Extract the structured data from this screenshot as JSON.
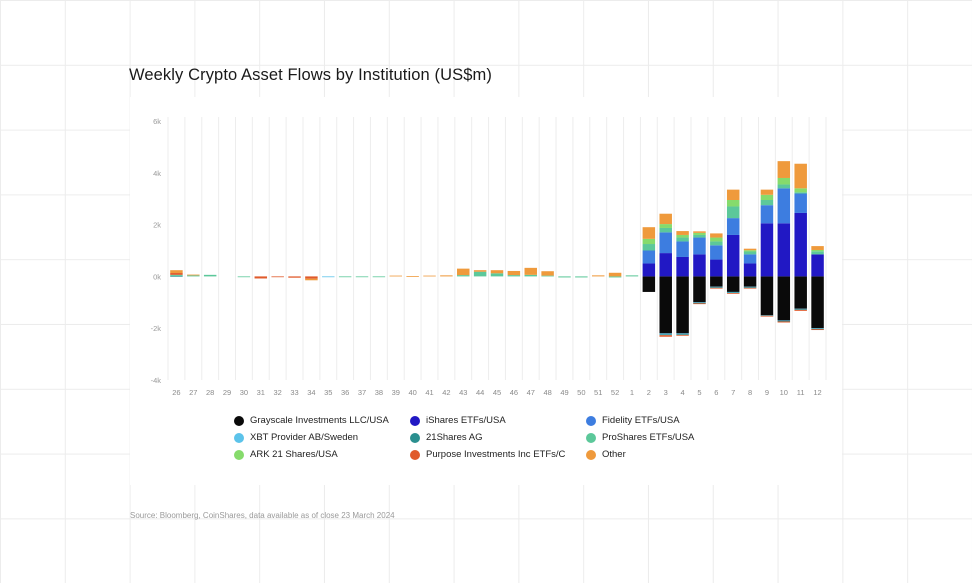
{
  "title": "Weekly Crypto Asset Flows by Institution (US$m)",
  "source": "Source: Bloomberg, CoinShares, data available as of close 23 March 2024",
  "chart_data": {
    "type": "bar",
    "stacked": true,
    "categories": [
      "26",
      "27",
      "28",
      "29",
      "30",
      "31",
      "32",
      "33",
      "34",
      "35",
      "36",
      "37",
      "38",
      "39",
      "40",
      "41",
      "42",
      "43",
      "44",
      "45",
      "46",
      "47",
      "48",
      "49",
      "50",
      "51",
      "52",
      "1",
      "2",
      "3",
      "4",
      "5",
      "6",
      "7",
      "8",
      "9",
      "10",
      "11",
      "12"
    ],
    "ylim": [
      -4000,
      6000
    ],
    "yticks": [
      6000,
      4000,
      2000,
      0,
      -2000,
      -4000
    ],
    "ytick_labels": [
      "6k",
      "4k",
      "2k",
      "0k",
      "-2k",
      "-4k"
    ],
    "grid": "vertical",
    "legend_position": "bottom",
    "series": [
      {
        "name": "Grayscale Investments LLC/USA",
        "color": "#0a0a0a",
        "values": [
          0,
          0,
          0,
          0,
          0,
          0,
          0,
          0,
          0,
          0,
          0,
          0,
          0,
          0,
          0,
          0,
          0,
          0,
          0,
          0,
          0,
          0,
          0,
          0,
          0,
          0,
          0,
          0,
          -600,
          -2200,
          -2200,
          -1000,
          -400,
          -600,
          -400,
          -1500,
          -1700,
          -1250,
          -2000
        ]
      },
      {
        "name": "iShares ETFs/USA",
        "color": "#2118c4",
        "values": [
          0,
          0,
          0,
          0,
          0,
          0,
          0,
          0,
          0,
          0,
          0,
          0,
          0,
          0,
          0,
          0,
          0,
          0,
          0,
          0,
          0,
          0,
          0,
          0,
          0,
          0,
          0,
          0,
          500,
          900,
          750,
          850,
          650,
          1600,
          500,
          2050,
          2050,
          2450,
          850
        ]
      },
      {
        "name": "Fidelity ETFs/USA",
        "color": "#3d7de0",
        "values": [
          0,
          0,
          0,
          0,
          0,
          0,
          0,
          0,
          0,
          0,
          0,
          0,
          0,
          0,
          0,
          0,
          0,
          0,
          0,
          0,
          0,
          0,
          0,
          0,
          0,
          0,
          0,
          0,
          500,
          800,
          600,
          650,
          550,
          650,
          350,
          700,
          1350,
          750,
          0
        ]
      },
      {
        "name": "XBT Provider AB/Sweden",
        "color": "#5cc3ea",
        "values": [
          0,
          0,
          0,
          0,
          0,
          0,
          0,
          0,
          0,
          -10,
          0,
          0,
          0,
          0,
          0,
          0,
          0,
          0,
          0,
          0,
          0,
          0,
          0,
          0,
          0,
          0,
          0,
          0,
          0,
          -40,
          -30,
          -20,
          -20,
          -20,
          -20,
          -10,
          -20,
          -20,
          -20
        ]
      },
      {
        "name": "21Shares AG",
        "color": "#2a8f8f",
        "values": [
          20,
          0,
          0,
          0,
          0,
          0,
          0,
          0,
          0,
          0,
          0,
          0,
          0,
          0,
          0,
          0,
          0,
          0,
          0,
          0,
          0,
          0,
          0,
          0,
          0,
          0,
          0,
          0,
          0,
          -30,
          -30,
          -20,
          -20,
          -20,
          -20,
          -10,
          -20,
          -20,
          -20
        ]
      },
      {
        "name": "ProShares ETFs/USA",
        "color": "#5cc89a",
        "values": [
          40,
          40,
          60,
          0,
          -15,
          0,
          0,
          0,
          0,
          0,
          -30,
          -30,
          -20,
          0,
          0,
          0,
          0,
          50,
          180,
          120,
          50,
          60,
          30,
          -40,
          -40,
          0,
          -40,
          40,
          250,
          170,
          150,
          100,
          150,
          450,
          110,
          200,
          150,
          50,
          120
        ]
      },
      {
        "name": "ARK 21 Shares/USA",
        "color": "#86db6c",
        "values": [
          0,
          0,
          0,
          0,
          0,
          0,
          0,
          0,
          0,
          0,
          0,
          0,
          0,
          0,
          0,
          0,
          0,
          0,
          0,
          0,
          0,
          0,
          0,
          0,
          0,
          0,
          0,
          0,
          200,
          150,
          100,
          80,
          150,
          250,
          50,
          200,
          250,
          150,
          50
        ]
      },
      {
        "name": "Purpose Investments Inc ETFs/C",
        "color": "#e05a2b",
        "values": [
          70,
          0,
          0,
          0,
          0,
          -80,
          -30,
          -50,
          -90,
          0,
          0,
          0,
          0,
          0,
          0,
          0,
          0,
          0,
          0,
          0,
          0,
          0,
          0,
          0,
          0,
          0,
          0,
          0,
          0,
          -60,
          -10,
          -20,
          -10,
          -20,
          -10,
          -10,
          -40,
          -40,
          -30
        ]
      },
      {
        "name": "Other",
        "color": "#ef9a3c",
        "values": [
          110,
          30,
          0,
          0,
          0,
          0,
          0,
          0,
          -60,
          0,
          0,
          0,
          0,
          30,
          10,
          30,
          40,
          250,
          60,
          120,
          160,
          270,
          170,
          0,
          0,
          40,
          140,
          0,
          450,
          400,
          150,
          60,
          160,
          400,
          60,
          200,
          650,
          950,
          150
        ]
      }
    ]
  }
}
